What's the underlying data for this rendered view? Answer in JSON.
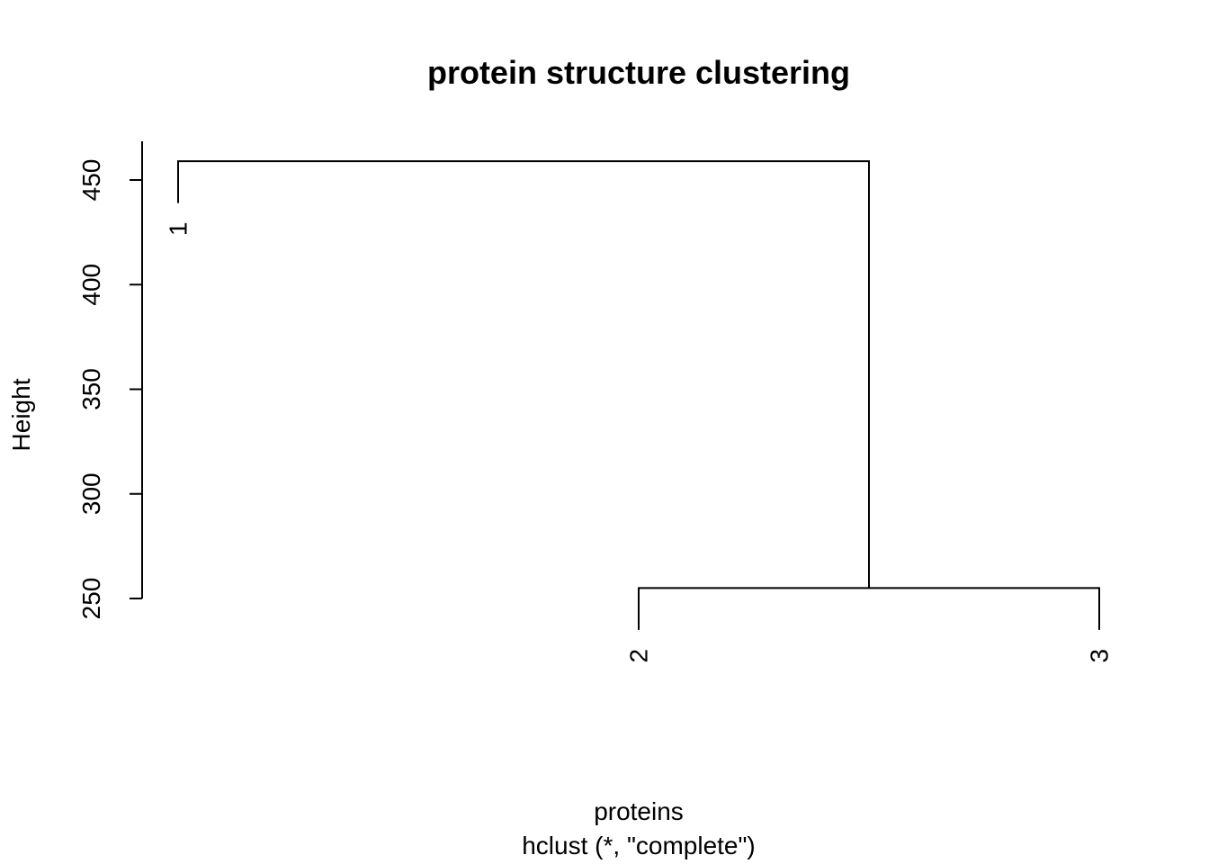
{
  "chart_data": {
    "type": "dendrogram",
    "title": "protein structure clustering",
    "xlabel": "proteins",
    "sub": "hclust (*, \"complete\")",
    "ylabel": "Height",
    "ylim": [
      250,
      460
    ],
    "yticks": [
      250,
      300,
      350,
      400,
      450
    ],
    "leaves": [
      {
        "label": "1",
        "height": 439
      },
      {
        "label": "2",
        "height": 235
      },
      {
        "label": "3",
        "height": 235
      }
    ],
    "merges": [
      {
        "left": "2",
        "right": "3",
        "height": 255
      },
      {
        "left": "1",
        "right": "2-3",
        "height": 459
      }
    ]
  }
}
